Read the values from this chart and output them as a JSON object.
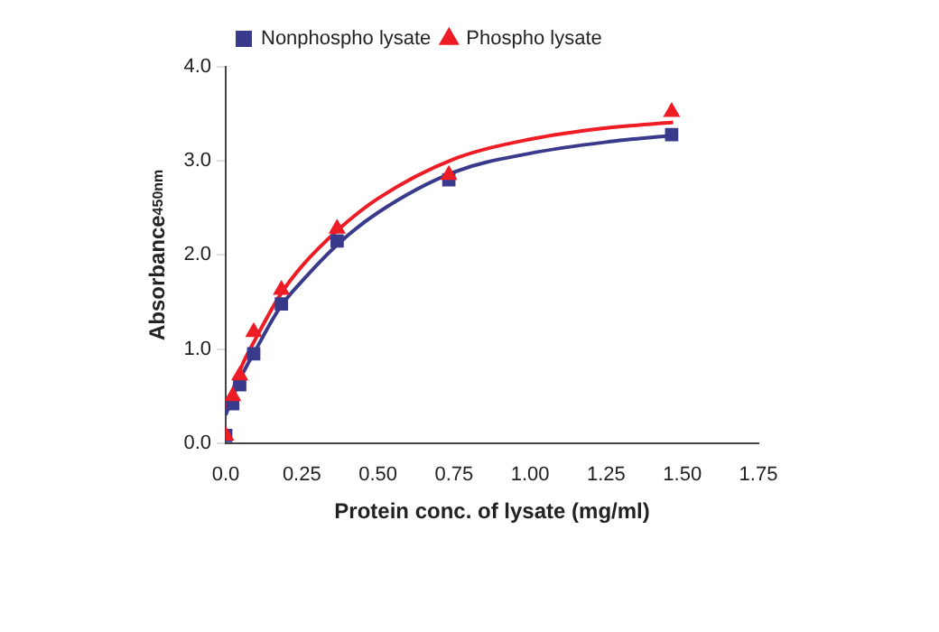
{
  "chart_data": {
    "type": "scatter",
    "xlabel": "Protein conc. of lysate (mg/ml)",
    "ylabel": "Absorbance$_{450nm}$",
    "xlim": [
      0,
      1.75
    ],
    "xticks": [
      {
        "value": 0,
        "label": "0.0"
      },
      {
        "value": 0.25,
        "label": "0.25"
      },
      {
        "value": 0.5,
        "label": "0.50"
      },
      {
        "value": 0.75,
        "label": "0.75"
      },
      {
        "value": 1,
        "label": "1.00"
      },
      {
        "value": 1.25,
        "label": "1.25"
      },
      {
        "value": 1.5,
        "label": "1.50"
      },
      {
        "value": 1.75,
        "label": "1.75"
      }
    ],
    "ylim": [
      0,
      4
    ],
    "yticks": [
      {
        "value": 0,
        "label": "0.0"
      },
      {
        "value": 1,
        "label": "1.0"
      },
      {
        "value": 2,
        "label": "2.0"
      },
      {
        "value": 3,
        "label": "3.0"
      },
      {
        "value": 4,
        "label": "4.0"
      }
    ],
    "grid": false,
    "legend": "top left",
    "series": [
      {
        "name": "Nonphospho lysate",
        "color": "#3a3a8c",
        "marker": "square",
        "x": [
          0,
          0.023,
          0.046,
          0.092,
          0.183,
          0.366,
          0.733,
          1.465
        ],
        "values": [
          0.08,
          0.42,
          0.62,
          0.95,
          1.48,
          2.15,
          2.8,
          3.28
        ]
      },
      {
        "name": "Phospho lysate",
        "color": "#ee1c25",
        "marker": "triangle",
        "x": [
          0,
          0.023,
          0.046,
          0.092,
          0.183,
          0.366,
          0.733,
          1.465
        ],
        "values": [
          0.08,
          0.5,
          0.72,
          1.18,
          1.63,
          2.28,
          2.85,
          3.52
        ]
      },
      {
        "type": "line",
        "color": "#3a3a8c",
        "marker": "none",
        "x": [
          0,
          0.05,
          0.1,
          0.18,
          0.25,
          0.37,
          0.5,
          0.75,
          1,
          1.25,
          1.47
        ],
        "values": [
          0.3,
          0.7,
          1.0,
          1.45,
          1.72,
          2.12,
          2.45,
          2.88,
          3.08,
          3.2,
          3.27
        ]
      },
      {
        "type": "line",
        "color": "#ee1c25",
        "marker": "none",
        "x": [
          0,
          0.05,
          0.1,
          0.18,
          0.25,
          0.37,
          0.5,
          0.75,
          1,
          1.25,
          1.47
        ],
        "values": [
          0.35,
          0.8,
          1.12,
          1.58,
          1.88,
          2.27,
          2.6,
          3.02,
          3.23,
          3.35,
          3.41
        ]
      }
    ]
  }
}
